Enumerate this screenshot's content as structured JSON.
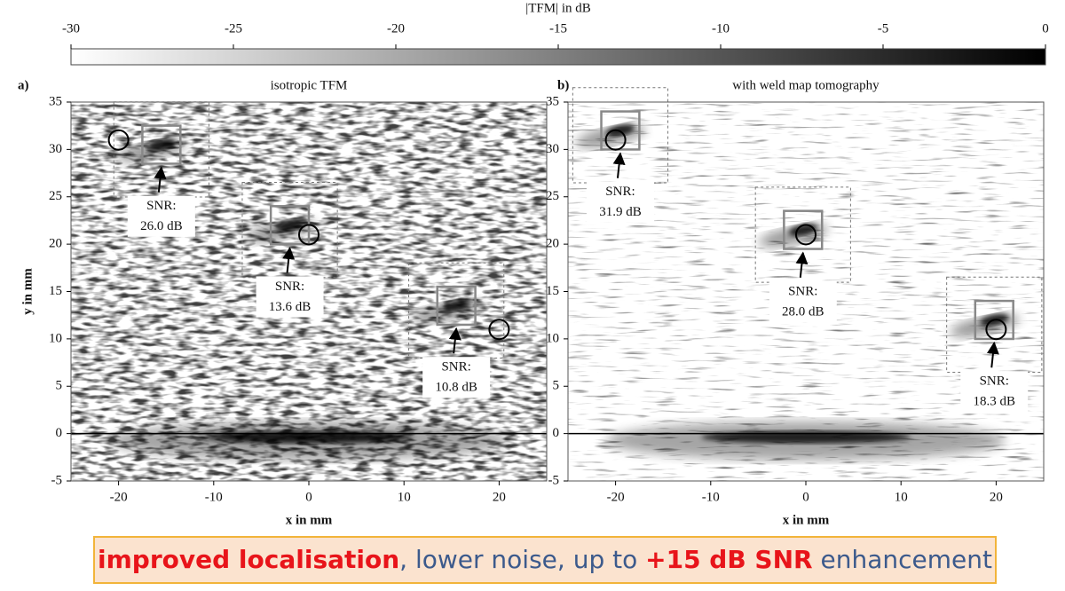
{
  "chart_data": [
    {
      "type": "colorbar",
      "title": "|TFM| in dB",
      "xlim": [
        -30,
        0
      ],
      "xticks": [
        -30,
        -25,
        -20,
        -15,
        -10,
        -5,
        0
      ],
      "colors": [
        "#ffffff",
        "#000000"
      ]
    },
    {
      "type": "image",
      "panel_label": "a)",
      "title": "isotropic TFM",
      "xlabel": "x in mm",
      "ylabel": "y in mm",
      "xlim": [
        -25,
        25
      ],
      "ylim": [
        -5,
        35
      ],
      "xticks": [
        -20,
        -10,
        0,
        10,
        20
      ],
      "yticks": [
        -5,
        0,
        5,
        10,
        15,
        20,
        25,
        30,
        35
      ],
      "hline": 0,
      "references": {
        "x": [
          -20,
          0,
          20
        ],
        "y": [
          31,
          21,
          11
        ]
      },
      "detections": {
        "x": [
          -15.5,
          -2,
          15.5
        ],
        "y": [
          30.5,
          22,
          13.5
        ]
      },
      "snr": {
        "label": "SNR:",
        "values": [
          26.0,
          13.6,
          10.8
        ],
        "value_labels": [
          "26.0 dB",
          "13.6 dB",
          "10.8 dB"
        ]
      }
    },
    {
      "type": "image",
      "panel_label": "b)",
      "title": "with weld map tomography",
      "xlabel": "x in mm",
      "xlim": [
        -25,
        25
      ],
      "ylim": [
        -5,
        35
      ],
      "xticks": [
        -20,
        -10,
        0,
        10,
        20
      ],
      "yticks": [
        -5,
        0,
        5,
        10,
        15,
        20,
        25,
        30,
        35
      ],
      "hline": 0,
      "references": {
        "x": [
          -20,
          0,
          20
        ],
        "y": [
          31,
          21,
          11
        ]
      },
      "detections": {
        "x": [
          -19.5,
          -0.3,
          19.8
        ],
        "y": [
          32,
          21.5,
          12
        ]
      },
      "snr": {
        "label": "SNR:",
        "values": [
          31.9,
          28.0,
          18.3
        ],
        "value_labels": [
          "31.9 dB",
          "28.0 dB",
          "18.3 dB"
        ]
      }
    }
  ],
  "banner": {
    "segments": [
      {
        "text": "improved localisation",
        "color": "#e8141a",
        "bold": true
      },
      {
        "text": ", lower noise, up to ",
        "color": "#3c5a8c",
        "bold": false
      },
      {
        "text": "+15 dB SNR",
        "color": "#e8141a",
        "bold": true
      },
      {
        "text": " enhancement",
        "color": "#3c5a8c",
        "bold": false
      }
    ]
  }
}
